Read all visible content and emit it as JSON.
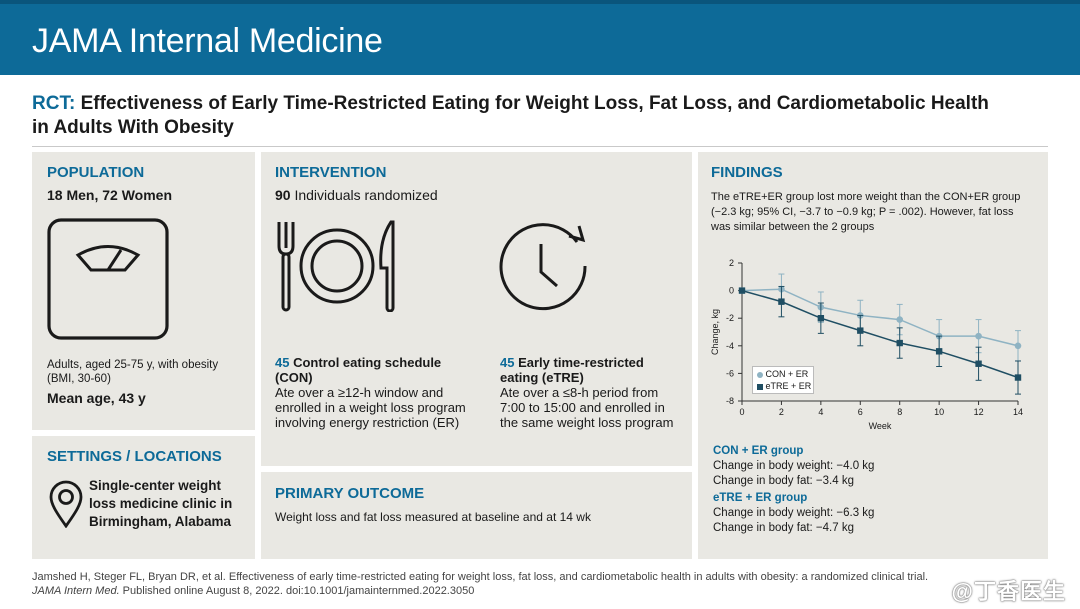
{
  "header": {
    "journal": "JAMA Internal Medicine"
  },
  "title": {
    "lead": "RCT:",
    "text": "Effectiveness of Early Time-Restricted Eating for Weight Loss, Fat Loss, and Cardiometabolic Health in Adults With Obesity"
  },
  "population": {
    "heading": "POPULATION",
    "counts": "18 Men, 72 Women",
    "desc": "Adults, aged 25-75 y, with obesity (BMI, 30-60)",
    "mean_age": "Mean age, 43 y",
    "icon": "scale-icon"
  },
  "settings": {
    "heading": "SETTINGS / LOCATIONS",
    "text": "Single-center weight loss medicine clinic in Birmingham, Alabama",
    "icon": "location-pin-icon"
  },
  "intervention": {
    "heading": "INTERVENTION",
    "randomized_n": "90",
    "randomized_text": "Individuals randomized",
    "con": {
      "n": "45",
      "label": "Control eating schedule (CON)",
      "desc": "Ate over a ≥12-h window and enrolled in a weight loss program involving energy restriction (ER)",
      "icon": "plate-cutlery-icon"
    },
    "etre": {
      "n": "45",
      "label": "Early time-restricted eating (eTRE)",
      "desc": "Ate over a ≤8-h period from 7:00 to 15:00 and enrolled in the same weight loss program",
      "icon": "clock-icon"
    }
  },
  "primary_outcome": {
    "heading": "PRIMARY OUTCOME",
    "text": "Weight loss and fat loss measured at baseline and at 14 wk"
  },
  "findings": {
    "heading": "FINDINGS",
    "summary": "The eTRE+ER group lost more weight than the CON+ER group (−2.3 kg; 95% CI, −3.7 to −0.9 kg; P = .002). However, fat loss was similar between the 2 groups",
    "con_heading": "CON + ER group",
    "con_weight": "Change in body weight: −4.0 kg",
    "con_fat": "Change in body fat: −3.4 kg",
    "etre_heading": "eTRE + ER group",
    "etre_weight": "Change in body weight: −6.3 kg",
    "etre_fat": "Change in body fat: −4.7 kg"
  },
  "chart_data": {
    "type": "line",
    "xlabel": "Week",
    "ylabel": "Change, kg",
    "x": [
      0,
      2,
      4,
      6,
      8,
      10,
      12,
      14
    ],
    "xlim": [
      0,
      14
    ],
    "ylim": [
      -8,
      2
    ],
    "xticks": [
      "0",
      "2",
      "4",
      "6",
      "8",
      "10",
      "12",
      "14"
    ],
    "yticks": [
      "2",
      "0",
      "-2",
      "-4",
      "-6",
      "-8"
    ],
    "legend_position": "bottom-left",
    "series": [
      {
        "name": "CON + ER",
        "color": "#8fb3c3",
        "marker": "circle",
        "values": [
          0,
          0.1,
          -1.2,
          -1.8,
          -2.1,
          -3.3,
          -3.3,
          -4.0
        ],
        "err": [
          0,
          1.1,
          1.1,
          1.1,
          1.1,
          1.2,
          1.2,
          1.1
        ]
      },
      {
        "name": "eTRE + ER",
        "color": "#1f4e63",
        "marker": "square",
        "values": [
          0,
          -0.8,
          -2.0,
          -2.9,
          -3.8,
          -4.4,
          -5.3,
          -6.3
        ],
        "err": [
          0,
          1.1,
          1.1,
          1.1,
          1.1,
          1.1,
          1.2,
          1.2
        ]
      }
    ]
  },
  "footer": {
    "line1": "Jamshed H, Steger FL, Bryan DR, et al. Effectiveness of early time-restricted eating for weight loss, fat loss, and cardiometabolic health in adults with obesity: a randomized clinical trial.",
    "line2_journal": "JAMA Intern Med.",
    "line2_rest": " Published online August 8, 2022. doi:10.1001/jamainternmed.2022.3050"
  },
  "watermark": "@丁香医生"
}
